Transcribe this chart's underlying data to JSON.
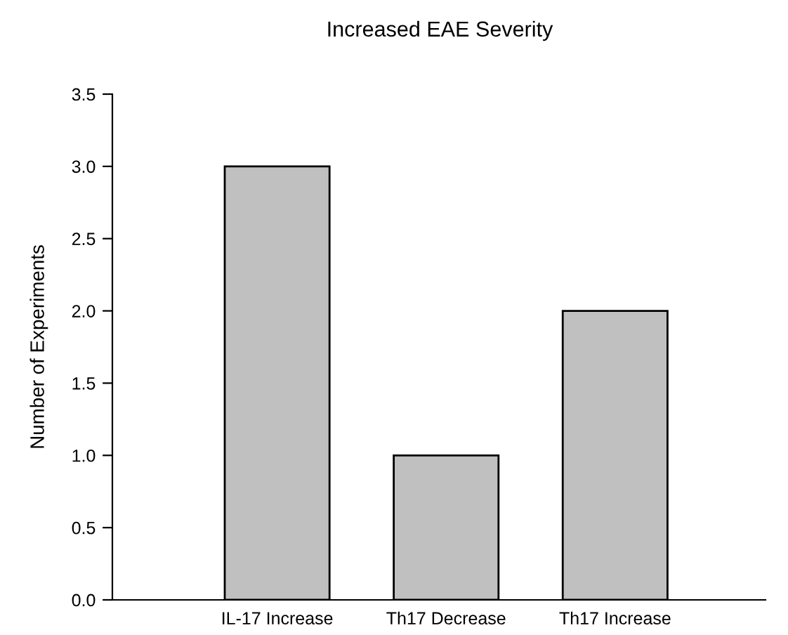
{
  "chart_data": {
    "type": "bar",
    "title": "Increased EAE Severity",
    "ylabel": "Number of Experiments",
    "categories": [
      "IL-17 Increase",
      "Th17 Decrease",
      "Th17 Increase"
    ],
    "values": [
      3,
      1,
      2
    ],
    "color": "#c0c0c0",
    "ylim": [
      0,
      3.5
    ],
    "yticks": [
      {
        "value": 0,
        "label": "0.0"
      },
      {
        "value": 0.5,
        "label": "0.5"
      },
      {
        "value": 1,
        "label": "1.0"
      },
      {
        "value": 1.5,
        "label": "1.5"
      },
      {
        "value": 2,
        "label": "2.0"
      },
      {
        "value": 2.5,
        "label": "2.5"
      },
      {
        "value": 3,
        "label": "3.0"
      },
      {
        "value": 3.5,
        "label": "3.5"
      }
    ],
    "grid": false,
    "legend": false
  }
}
